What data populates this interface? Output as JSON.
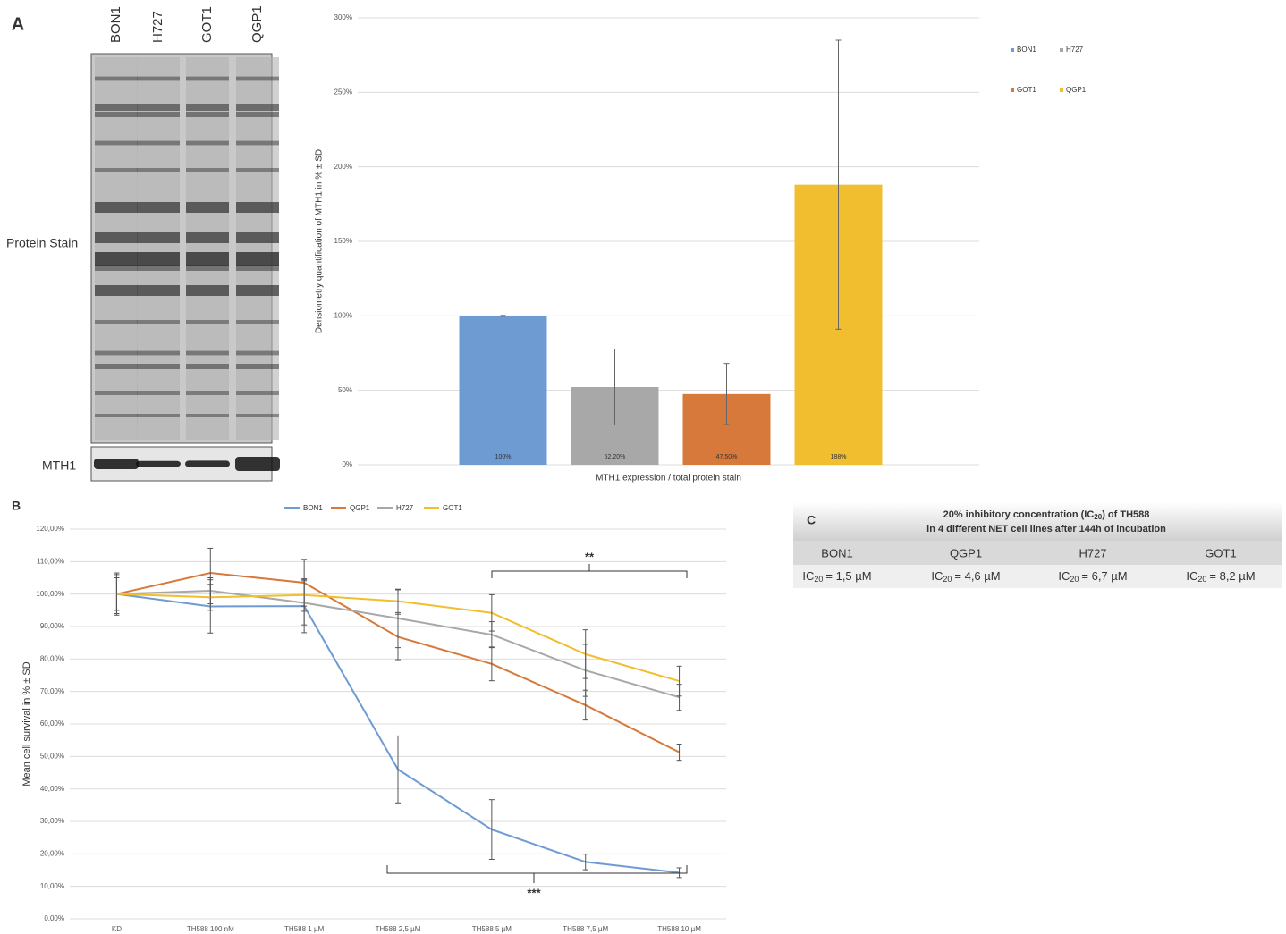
{
  "blot": {
    "label": "A",
    "lanes": [
      "BON1",
      "H727",
      "GOT1",
      "QGP1"
    ],
    "rows": [
      "Protein Stain",
      "MTH1"
    ]
  },
  "chart_data": [
    {
      "type": "bar",
      "y_label": "Densiometry quantification of MTH1 in % ± SD",
      "x_label": "MTH1 expression / total protein stain",
      "ylim": [
        0,
        300
      ],
      "yticks": [
        {
          "value": 0,
          "label": "0%"
        },
        {
          "value": 50,
          "label": "50%"
        },
        {
          "value": 100,
          "label": "100%"
        },
        {
          "value": 150,
          "label": "150%"
        },
        {
          "value": 200,
          "label": "200%"
        },
        {
          "value": 250,
          "label": "250%"
        },
        {
          "value": 300,
          "label": "300%"
        }
      ],
      "grid": true,
      "legend": "right",
      "series": [
        {
          "name": "BON1",
          "color": "#6f9bd3",
          "values": [
            100
          ],
          "errors": [
            0.3
          ],
          "value_labels": [
            "100%"
          ]
        },
        {
          "name": "H727",
          "color": "#a8a8a8",
          "values": [
            52.2
          ],
          "errors": [
            25.5
          ],
          "value_labels": [
            "52,20%"
          ]
        },
        {
          "name": "GOT1",
          "color": "#d6793a",
          "values": [
            47.5
          ],
          "errors": [
            20.5
          ],
          "value_labels": [
            "47,50%"
          ]
        },
        {
          "name": "QGP1",
          "color": "#f0be2e",
          "values": [
            188
          ],
          "errors": [
            97
          ],
          "value_labels": [
            "188%"
          ]
        }
      ]
    },
    {
      "type": "line",
      "label": "B",
      "y_label": "Mean cell survival in % ± SD",
      "categories": [
        "KD",
        "TH588 100 nM",
        "TH588 1 µM",
        "TH588 2,5 µM",
        "TH588 5 µM",
        "TH588 7,5 µM",
        "TH588 10 µM"
      ],
      "ylim": [
        0,
        120
      ],
      "yticks": [
        {
          "value": 0,
          "label": "0,00%"
        },
        {
          "value": 10,
          "label": "10,00%"
        },
        {
          "value": 20,
          "label": "20,00%"
        },
        {
          "value": 30,
          "label": "30,00%"
        },
        {
          "value": 40,
          "label": "40,00%"
        },
        {
          "value": 50,
          "label": "50,00%"
        },
        {
          "value": 60,
          "label": "60,00%"
        },
        {
          "value": 70,
          "label": "70,00%"
        },
        {
          "value": 80,
          "label": "80,00%"
        },
        {
          "value": 90,
          "label": "90,00%"
        },
        {
          "value": 100,
          "label": "100,00%"
        },
        {
          "value": 110,
          "label": "110,00%"
        },
        {
          "value": 120,
          "label": "120,00%"
        }
      ],
      "grid": true,
      "legend": "top",
      "annotations": [
        "**",
        "***"
      ],
      "series": [
        {
          "name": "BON1",
          "color": "#6f9bd3",
          "values": [
            100,
            96.2,
            96.3,
            46,
            27.5,
            17.5,
            14.2
          ],
          "errors": [
            5,
            8.2,
            8.2,
            10.3,
            9.2,
            2.4,
            1.5
          ]
        },
        {
          "name": "QGP1",
          "color": "#d6793a",
          "values": [
            100,
            106.5,
            103.5,
            86.8,
            78.5,
            65.8,
            51.3
          ],
          "errors": [
            5,
            7.6,
            7.2,
            7,
            5.2,
            4.6,
            2.5
          ]
        },
        {
          "name": "H727",
          "color": "#a8a8a8",
          "values": [
            100,
            101,
            97.3,
            92.5,
            87.5,
            76.5,
            68.2
          ],
          "errors": [
            6.5,
            4,
            6.8,
            9,
            4,
            8,
            4
          ]
        },
        {
          "name": "GOT1",
          "color": "#f0be2e",
          "values": [
            100,
            99,
            99.7,
            97.8,
            94.2,
            81.5,
            73.2
          ],
          "errors": [
            6,
            4,
            5,
            3.5,
            5.6,
            7.5,
            4.6
          ]
        }
      ]
    }
  ],
  "table": {
    "label": "C",
    "title": {
      "line1": [
        "20% inhibitory concentration (IC",
        "20",
        ") of TH588"
      ],
      "line2": "in 4 different NET cell lines after 144h of incubation"
    },
    "columns": [
      {
        "name": "BON1",
        "color": "#6670c4"
      },
      {
        "name": "QGP1",
        "color": "#d0844c"
      },
      {
        "name": "H727",
        "color": "#808080"
      },
      {
        "name": "GOT1",
        "color": "#e4b23c"
      }
    ],
    "cells": [
      [
        "IC",
        "20",
        "= 1,5 µM"
      ],
      [
        "IC",
        "20",
        "= 4,6 µM"
      ],
      [
        "IC",
        "20",
        "= 6,7 µM"
      ],
      [
        "IC",
        "20",
        "= 8,2 µM"
      ]
    ]
  }
}
